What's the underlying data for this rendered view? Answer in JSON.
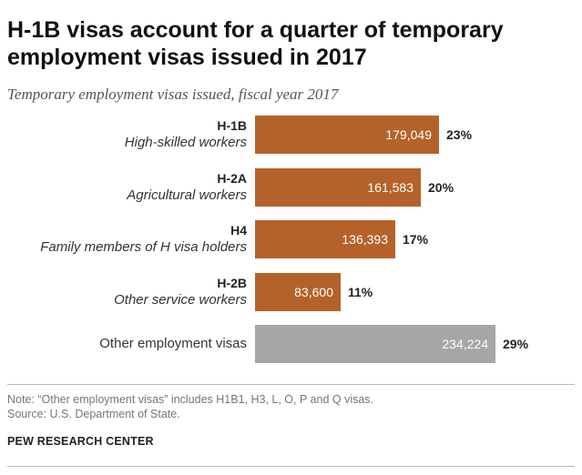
{
  "chart_data": {
    "type": "bar",
    "orientation": "horizontal",
    "title": "H-1B visas account for a quarter of temporary employment visas issued in 2017",
    "subtitle": "Temporary employment visas issued, fiscal year 2017",
    "categories": [
      {
        "code": "H-1B",
        "desc": "High-skilled workers",
        "value": 179049,
        "value_label": "179,049",
        "percent_label": "23%",
        "color": "#b5622a"
      },
      {
        "code": "H-2A",
        "desc": "Agricultural workers",
        "value": 161583,
        "value_label": "161,583",
        "percent_label": "20%",
        "color": "#b5622a"
      },
      {
        "code": "H4",
        "desc": "Family members of H visa holders",
        "value": 136393,
        "value_label": "136,393",
        "percent_label": "17%",
        "color": "#b5622a"
      },
      {
        "code": "H-2B",
        "desc": "Other service workers",
        "value": 83600,
        "value_label": "83,600",
        "percent_label": "11%",
        "color": "#b5622a"
      },
      {
        "code": "",
        "desc": "Other employment visas",
        "value": 234224,
        "value_label": "234,224",
        "percent_label": "29%",
        "color": "#a6a6a6"
      }
    ],
    "xlim": [
      0,
      234224
    ]
  },
  "footer": {
    "note": "Note: “Other employment visas” includes H1B1, H3, L, O, P and Q visas.",
    "source": "Source: U.S. Department of State.",
    "brand": "PEW RESEARCH CENTER"
  }
}
